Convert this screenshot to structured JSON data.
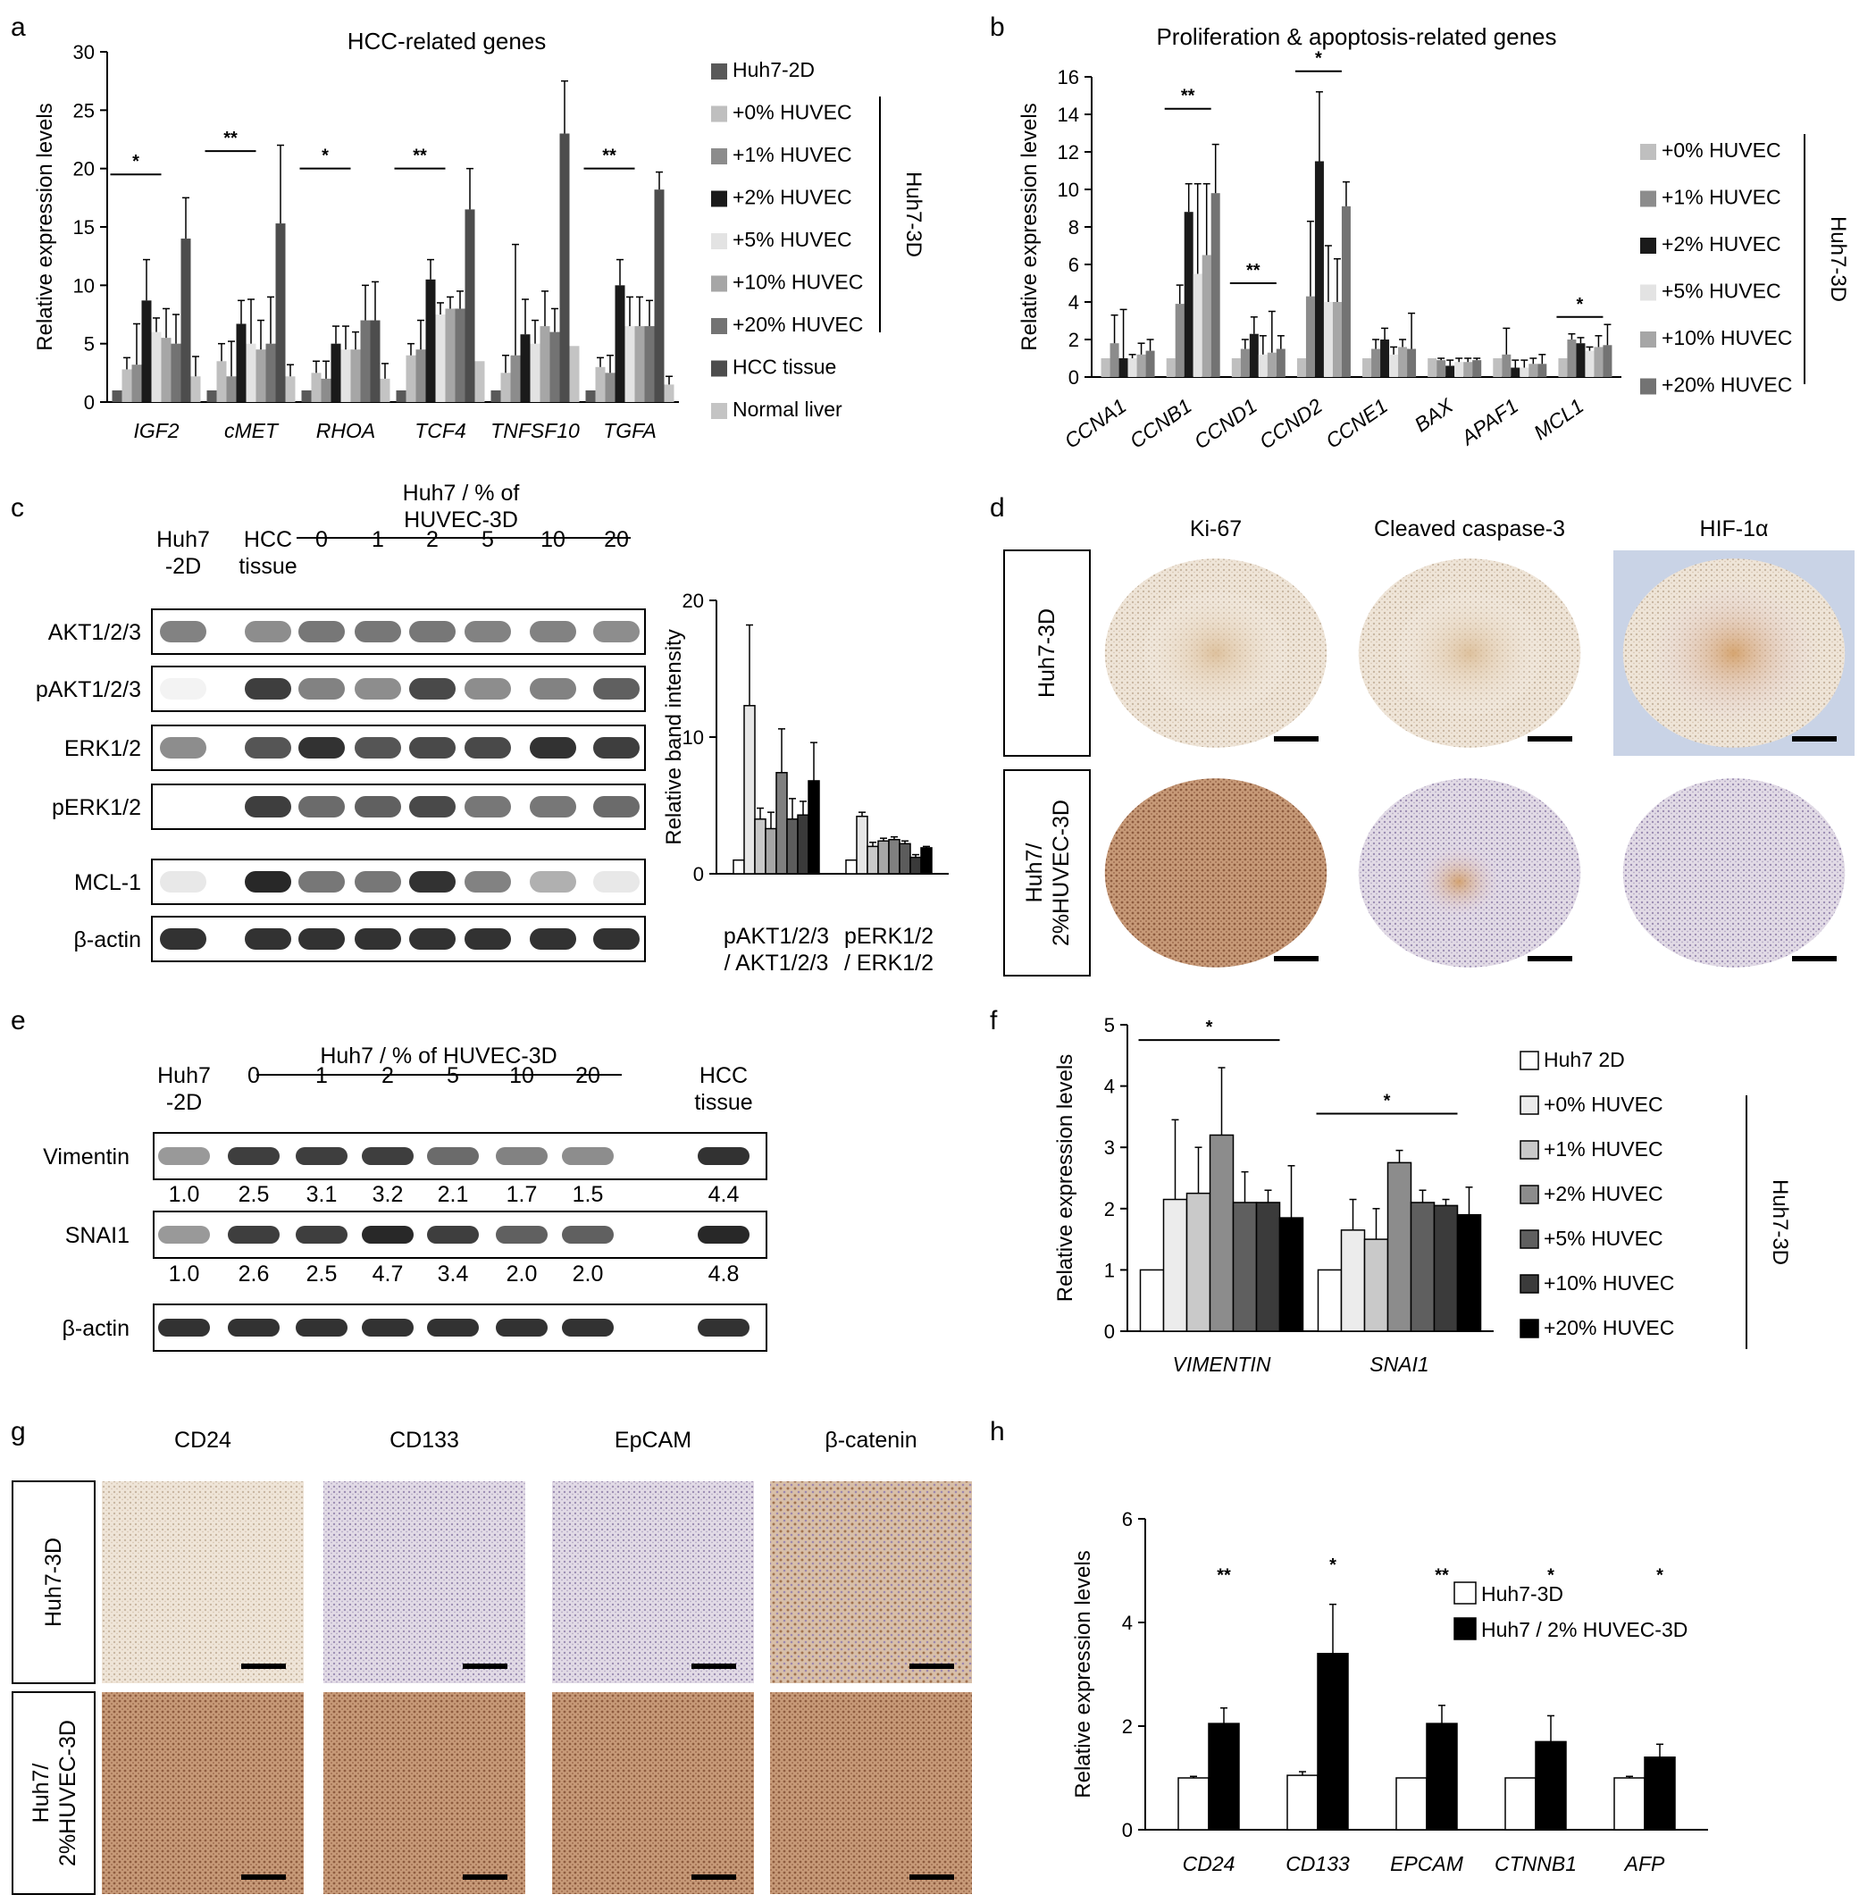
{
  "panel_letters": [
    "a",
    "b",
    "c",
    "d",
    "e",
    "f",
    "g",
    "h"
  ],
  "colors": {
    "huh7_2d": "#595959",
    "p0": "#bfbfbf",
    "p1": "#8c8c8c",
    "p2": "#1a1a1a",
    "p5": "#e3e3e3",
    "p10": "#a6a6a6",
    "p20": "#737373",
    "hcc": "#4d4d4d",
    "normal": "#c4c4c4",
    "band": "#1c1c1c",
    "tissue_tan": "#efe5d8",
    "tissue_brown": "#b8865f",
    "tissue_purple": "#b6a6c4"
  },
  "chart_data": [
    {
      "panel": "a",
      "type": "bar",
      "title": "HCC-related  genes",
      "ylabel": "Relative  expression levels",
      "ylim": [
        0,
        30
      ],
      "yticks": [
        0,
        5,
        10,
        15,
        20,
        25,
        30
      ],
      "categories": [
        "IGF2",
        "cMET",
        "RHOA",
        "TCF4",
        "TNFSF10",
        "TGFA"
      ],
      "significance": [
        "*",
        "**",
        "*",
        "**",
        "",
        "**"
      ],
      "series": [
        {
          "name": "Huh7-2D",
          "values": [
            1,
            1,
            1,
            1,
            1,
            1
          ],
          "err": [
            0,
            0,
            0,
            0,
            0,
            0
          ]
        },
        {
          "name": "+0% HUVEC",
          "values": [
            2.8,
            3.5,
            2.5,
            4,
            2.5,
            3
          ],
          "err": [
            1,
            1.5,
            1,
            1,
            1.5,
            0.8
          ]
        },
        {
          "name": "+1% HUVEC",
          "values": [
            3.2,
            2.2,
            2,
            4.5,
            4,
            2.5
          ],
          "err": [
            3.5,
            3,
            1.5,
            2.5,
            9.5,
            1.5
          ]
        },
        {
          "name": "+2% HUVEC",
          "values": [
            8.7,
            6.7,
            5,
            10.5,
            5.8,
            10
          ],
          "err": [
            3.5,
            2,
            1.5,
            1.7,
            3,
            2.2
          ]
        },
        {
          "name": "+5% HUVEC",
          "values": [
            6,
            5,
            4.5,
            7.5,
            5,
            6.5
          ],
          "err": [
            1.2,
            3.8,
            2,
            1,
            2,
            2.5
          ]
        },
        {
          "name": "+10% HUVEC",
          "values": [
            5.5,
            4.5,
            4.5,
            8,
            6.5,
            6.5
          ],
          "err": [
            2.5,
            2.5,
            1.5,
            1,
            3,
            2.5
          ]
        },
        {
          "name": "+20% HUVEC",
          "values": [
            5,
            5,
            7,
            8,
            6,
            6.5
          ],
          "err": [
            2.5,
            4,
            3,
            1.5,
            2,
            2.2
          ]
        },
        {
          "name": "HCC tissue",
          "values": [
            14,
            15.3,
            7,
            16.5,
            23,
            18.2
          ],
          "err": [
            3.5,
            6.7,
            3.3,
            3.5,
            4.5,
            1.5
          ]
        },
        {
          "name": "Normal liver",
          "values": [
            2.2,
            2.2,
            2,
            3.5,
            4.8,
            1.5
          ],
          "err": [
            1.7,
            1,
            1.3,
            0,
            0,
            0.7
          ]
        }
      ],
      "legend_group": "Huh7-3D"
    },
    {
      "panel": "b",
      "type": "bar",
      "title": "Proliferation  &  apoptosis-related  genes",
      "ylabel": "Relative  expression levels",
      "ylim": [
        0,
        16
      ],
      "yticks": [
        0,
        2,
        4,
        6,
        8,
        10,
        12,
        14,
        16
      ],
      "categories": [
        "CCNA1",
        "CCNB1",
        "CCND1",
        "CCND2",
        "CCNE1",
        "BAX",
        "APAF1",
        "MCL1"
      ],
      "significance": [
        "",
        "**",
        "**",
        "*",
        "",
        "",
        "",
        "*"
      ],
      "series": [
        {
          "name": "+0% HUVEC",
          "values": [
            1,
            1,
            1,
            1,
            1,
            1,
            1,
            1
          ],
          "err": [
            0,
            0,
            0,
            0,
            0,
            0,
            0,
            0
          ]
        },
        {
          "name": "+1% HUVEC",
          "values": [
            1.8,
            3.9,
            1.5,
            4.3,
            1.5,
            0.9,
            1.2,
            2
          ],
          "err": [
            1.5,
            1,
            0.5,
            4,
            0.5,
            0.1,
            1.4,
            0.3
          ]
        },
        {
          "name": "+2% HUVEC",
          "values": [
            1,
            8.8,
            2.3,
            11.5,
            2,
            0.6,
            0.5,
            1.8
          ],
          "err": [
            2.6,
            1.5,
            0.9,
            3.7,
            0.6,
            0.3,
            0.4,
            0.3
          ]
        },
        {
          "name": "+5% HUVEC",
          "values": [
            1,
            5.5,
            1.2,
            4,
            1.2,
            0.8,
            0.5,
            1.4
          ],
          "err": [
            0.2,
            4.8,
            1,
            3,
            0.4,
            0.2,
            0.4,
            0.2
          ]
        },
        {
          "name": "+10% HUVEC",
          "values": [
            1.2,
            6.5,
            1.3,
            4,
            1.6,
            0.8,
            0.7,
            1.6
          ],
          "err": [
            0.6,
            3.8,
            2.2,
            2.3,
            0.4,
            0.2,
            0.3,
            0.6
          ]
        },
        {
          "name": "+20% HUVEC",
          "values": [
            1.4,
            9.8,
            1.5,
            9.1,
            1.5,
            0.9,
            0.7,
            1.7
          ],
          "err": [
            0.6,
            2.6,
            0.7,
            1.3,
            1.9,
            0.1,
            0.5,
            1.1
          ]
        }
      ],
      "legend_group": "Huh7-3D"
    },
    {
      "panel": "c",
      "type": "bar",
      "ylabel": "Relative  band  intensity",
      "ylim": [
        0,
        20
      ],
      "yticks": [
        0,
        10,
        20
      ],
      "categories": [
        "pAKT1/2/3\n/ AKT1/2/3",
        "pERK1/2\n/ ERK1/2"
      ],
      "series": [
        {
          "name": "Huh7-2D",
          "values": [
            1,
            1
          ],
          "err": [
            0,
            0
          ]
        },
        {
          "name": "HCC tissue",
          "values": [
            12.3,
            4.2
          ],
          "err": [
            5.9,
            0.3
          ]
        },
        {
          "name": "0",
          "values": [
            4,
            2
          ],
          "err": [
            0.8,
            0.3
          ]
        },
        {
          "name": "1",
          "values": [
            3.3,
            2.4
          ],
          "err": [
            1.2,
            0.2
          ]
        },
        {
          "name": "2",
          "values": [
            7.4,
            2.5
          ],
          "err": [
            3.2,
            0.2
          ]
        },
        {
          "name": "5",
          "values": [
            4,
            2.2
          ],
          "err": [
            1.5,
            0.2
          ]
        },
        {
          "name": "10",
          "values": [
            4.3,
            1.2
          ],
          "err": [
            1,
            0.2
          ]
        },
        {
          "name": "20",
          "values": [
            6.8,
            1.9
          ],
          "err": [
            2.8,
            0.1
          ]
        }
      ]
    },
    {
      "panel": "f",
      "type": "bar",
      "ylabel": "Relative  expression levels",
      "ylim": [
        0,
        5
      ],
      "yticks": [
        0,
        1,
        2,
        3,
        4,
        5
      ],
      "categories": [
        "VIMENTIN",
        "SNAI1"
      ],
      "significance": [
        "*",
        "*"
      ],
      "series": [
        {
          "name": "Huh7 2D",
          "values": [
            1,
            1
          ],
          "err": [
            0,
            0
          ]
        },
        {
          "name": "+0% HUVEC",
          "values": [
            2.15,
            1.65
          ],
          "err": [
            1.3,
            0.5
          ]
        },
        {
          "name": "+1% HUVEC",
          "values": [
            2.25,
            1.5
          ],
          "err": [
            0.75,
            0.5
          ]
        },
        {
          "name": "+2% HUVEC",
          "values": [
            3.2,
            2.75
          ],
          "err": [
            1.1,
            0.2
          ]
        },
        {
          "name": "+5% HUVEC",
          "values": [
            2.1,
            2.1
          ],
          "err": [
            0.5,
            0.2
          ]
        },
        {
          "name": "+10% HUVEC",
          "values": [
            2.1,
            2.05
          ],
          "err": [
            0.2,
            0.1
          ]
        },
        {
          "name": "+20% HUVEC",
          "values": [
            1.85,
            1.9
          ],
          "err": [
            0.85,
            0.45
          ]
        }
      ],
      "legend_group": "Huh7-3D"
    },
    {
      "panel": "h",
      "type": "bar",
      "ylabel": "Relative  expression levels",
      "ylim": [
        0,
        6
      ],
      "yticks": [
        0,
        2,
        4,
        6
      ],
      "categories": [
        "CD24",
        "CD133",
        "EPCAM",
        "CTNNB1",
        "AFP"
      ],
      "significance": [
        "**",
        "*",
        "**",
        "*",
        "*"
      ],
      "series": [
        {
          "name": "Huh7-3D",
          "values": [
            1,
            1.05,
            1,
            1,
            1
          ],
          "err": [
            0.03,
            0.07,
            0,
            0,
            0.03
          ]
        },
        {
          "name": "Huh7  /  2% HUVEC-3D",
          "values": [
            2.05,
            3.4,
            2.05,
            1.7,
            1.4
          ],
          "err": [
            0.3,
            0.95,
            0.35,
            0.5,
            0.25
          ]
        }
      ]
    }
  ],
  "panel_c": {
    "header": "Huh7 / % of\nHUVEC-3D",
    "lanes": [
      "Huh7\n-2D",
      "HCC\ntissue",
      "0",
      "1",
      "2",
      "5",
      "10",
      "20"
    ],
    "rows": [
      "AKT1/2/3",
      "pAKT1/2/3",
      "ERK1/2",
      "pERK1/2",
      "MCL-1",
      "β-actin"
    ],
    "intensity": [
      [
        0.55,
        0.5,
        0.6,
        0.6,
        0.6,
        0.55,
        0.55,
        0.5
      ],
      [
        0.05,
        0.85,
        0.55,
        0.5,
        0.8,
        0.5,
        0.55,
        0.7
      ],
      [
        0.5,
        0.75,
        0.9,
        0.75,
        0.8,
        0.8,
        0.9,
        0.85
      ],
      [
        0,
        0.85,
        0.65,
        0.7,
        0.8,
        0.6,
        0.6,
        0.65
      ],
      [
        0.1,
        0.95,
        0.6,
        0.6,
        0.9,
        0.55,
        0.35,
        0.1
      ],
      [
        0.9,
        0.9,
        0.9,
        0.9,
        0.9,
        0.9,
        0.9,
        0.9
      ]
    ]
  },
  "panel_d": {
    "columns": [
      "Ki-67",
      "Cleaved  caspase-3",
      "HIF-1α"
    ],
    "rows": [
      "Huh7-3D",
      "Huh7/\n2%HUVEC-3D"
    ]
  },
  "panel_e": {
    "header": "Huh7  /  % of HUVEC-3D",
    "lanes": [
      "Huh7\n-2D",
      "0",
      "1",
      "2",
      "5",
      "10",
      "20",
      "HCC\ntissue"
    ],
    "rows": [
      "Vimentin",
      "SNAI1",
      "β-actin"
    ],
    "quant": [
      [
        "1.0",
        "2.5",
        "3.1",
        "3.2",
        "2.1",
        "1.7",
        "1.5",
        "4.4"
      ],
      [
        "1.0",
        "2.6",
        "2.5",
        "4.7",
        "3.4",
        "2.0",
        "2.0",
        "4.8"
      ]
    ],
    "intensity": [
      [
        0.45,
        0.85,
        0.85,
        0.85,
        0.65,
        0.55,
        0.5,
        0.9
      ],
      [
        0.45,
        0.85,
        0.85,
        0.95,
        0.85,
        0.7,
        0.7,
        0.95
      ],
      [
        0.9,
        0.9,
        0.9,
        0.9,
        0.9,
        0.9,
        0.9,
        0.9
      ]
    ]
  },
  "panel_g": {
    "columns": [
      "CD24",
      "CD133",
      "EpCAM",
      "β-catenin"
    ],
    "rows": [
      "Huh7-3D",
      "Huh7/\n2%HUVEC-3D"
    ]
  }
}
